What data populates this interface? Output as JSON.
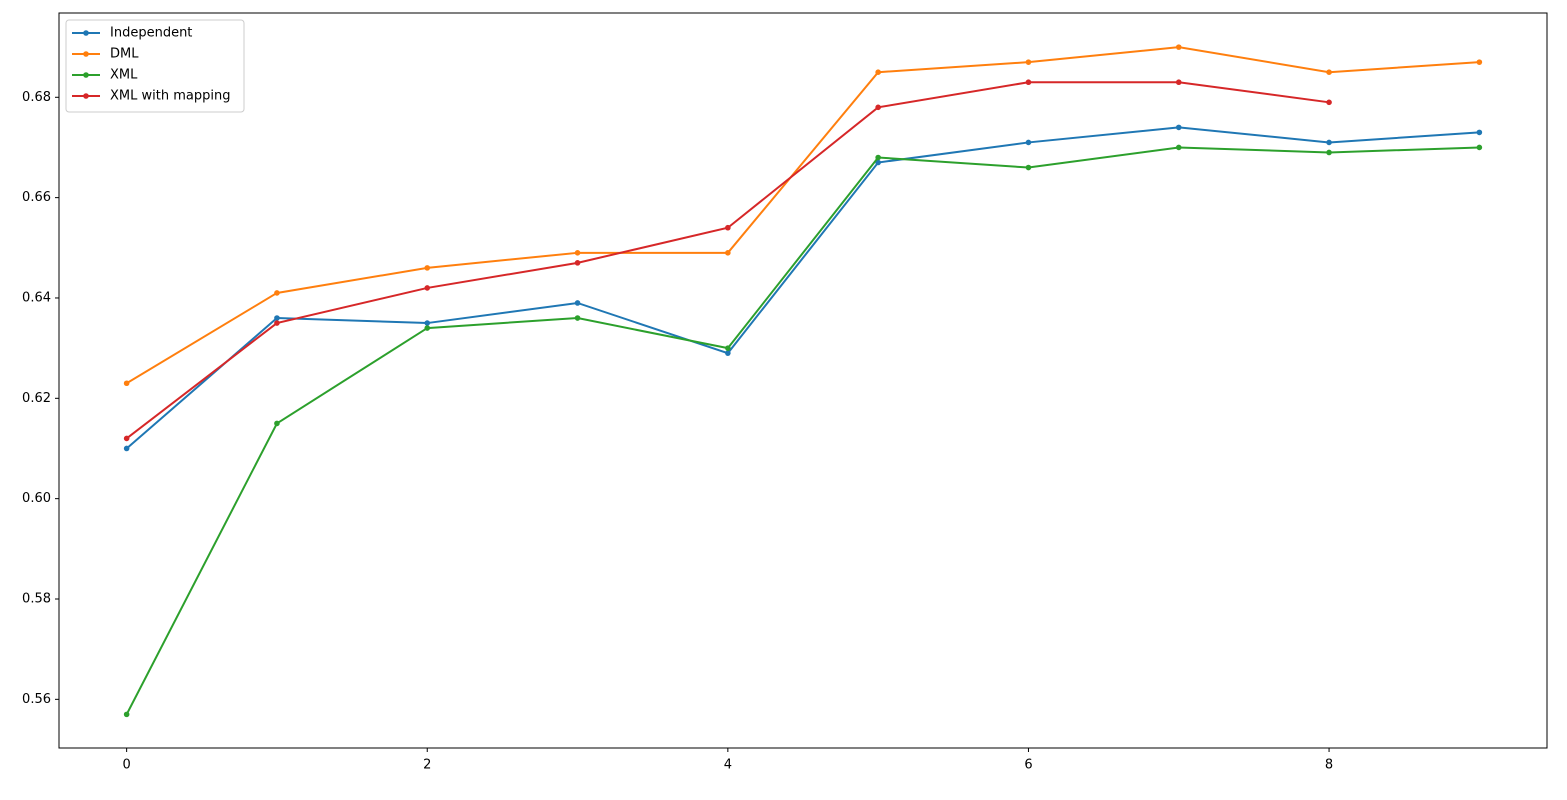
{
  "chart_data": {
    "type": "line",
    "x": [
      0,
      1,
      2,
      3,
      4,
      5,
      6,
      7,
      8,
      9
    ],
    "series": [
      {
        "name": "Independent",
        "color": "#1f77b4",
        "values": [
          0.61,
          0.636,
          0.635,
          0.639,
          0.629,
          0.667,
          0.671,
          0.674,
          0.671,
          0.673
        ]
      },
      {
        "name": "DML",
        "color": "#ff7f0e",
        "values": [
          0.623,
          0.641,
          0.646,
          0.649,
          0.649,
          0.685,
          0.687,
          0.69,
          0.685,
          0.687
        ]
      },
      {
        "name": "XML",
        "color": "#2ca02c",
        "values": [
          0.557,
          0.615,
          0.634,
          0.636,
          0.63,
          0.668,
          0.666,
          0.67,
          0.669,
          0.67
        ]
      },
      {
        "name": "XML with mapping",
        "color": "#d62728",
        "values": [
          0.612,
          0.635,
          0.642,
          0.647,
          0.654,
          0.678,
          0.683,
          0.683,
          0.679,
          null
        ]
      }
    ],
    "xlim": [
      -0.45,
      9.45
    ],
    "xticks": [
      0,
      2,
      4,
      6,
      8
    ],
    "ylim": [
      0.5503,
      0.6968
    ],
    "yticks": [
      0.56,
      0.58,
      {
        "value": 0.6,
        "label": "0.60"
      },
      0.62,
      0.64,
      0.66,
      0.68
    ],
    "grid": false,
    "legend": "upper left"
  }
}
